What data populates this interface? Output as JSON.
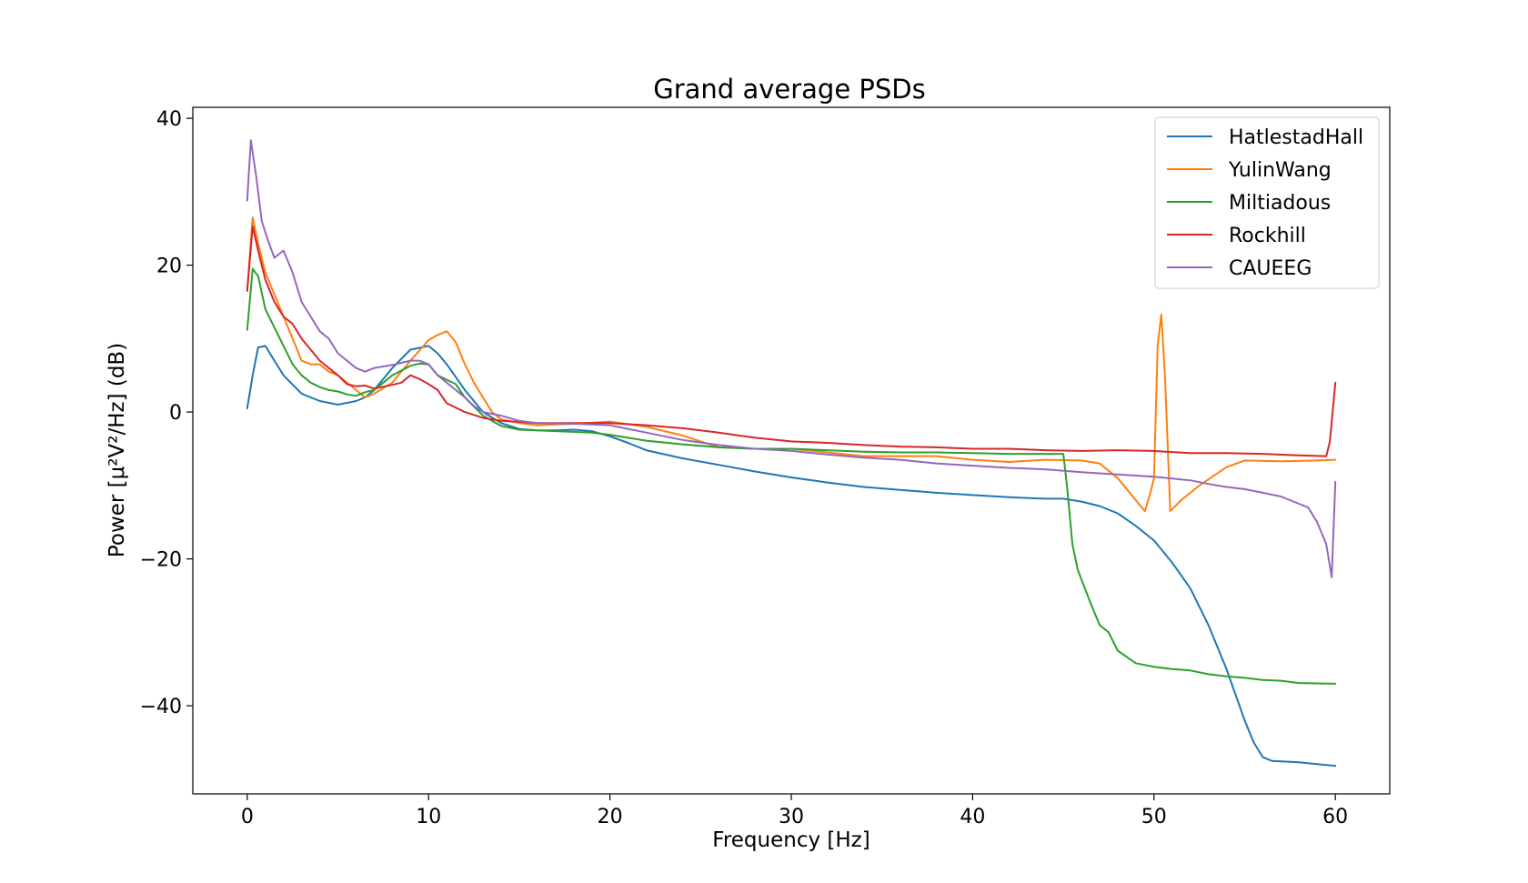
{
  "chart_data": {
    "type": "line",
    "title": "Grand average PSDs",
    "xlabel": "Frequency [Hz]",
    "ylabel": "Power [μ²V²/Hz] (dB)",
    "xlim": [
      -3,
      63
    ],
    "ylim": [
      -52,
      41.5
    ],
    "xticks": [
      0,
      10,
      20,
      30,
      40,
      50,
      60
    ],
    "xtick_labels": [
      "0",
      "10",
      "20",
      "30",
      "40",
      "50",
      "60"
    ],
    "yticks": [
      40,
      20,
      0,
      -20,
      -40
    ],
    "ytick_labels": [
      "40",
      "20",
      "0",
      "−20",
      "−40"
    ],
    "grid": false,
    "legend_position": "top-right",
    "series": [
      {
        "name": "HatlestadHall",
        "color": "#1f77b4",
        "points": [
          [
            0,
            0.5
          ],
          [
            0.3,
            5
          ],
          [
            0.6,
            8.8
          ],
          [
            1,
            9
          ],
          [
            1.5,
            7
          ],
          [
            2,
            5
          ],
          [
            3,
            2.5
          ],
          [
            4,
            1.5
          ],
          [
            5,
            1
          ],
          [
            6,
            1.5
          ],
          [
            6.5,
            2
          ],
          [
            7,
            3
          ],
          [
            8,
            6
          ],
          [
            9,
            8.5
          ],
          [
            10,
            9
          ],
          [
            10.5,
            8
          ],
          [
            11,
            6.5
          ],
          [
            12,
            3
          ],
          [
            13,
            0
          ],
          [
            14,
            -1.5
          ],
          [
            15,
            -2.3
          ],
          [
            16,
            -2.5
          ],
          [
            17,
            -2.5
          ],
          [
            18,
            -2.4
          ],
          [
            19,
            -2.6
          ],
          [
            20,
            -3.3
          ],
          [
            21,
            -4.2
          ],
          [
            22,
            -5.2
          ],
          [
            24,
            -6.3
          ],
          [
            26,
            -7.2
          ],
          [
            28,
            -8.1
          ],
          [
            30,
            -8.9
          ],
          [
            32,
            -9.6
          ],
          [
            34,
            -10.2
          ],
          [
            36,
            -10.6
          ],
          [
            38,
            -11
          ],
          [
            40,
            -11.3
          ],
          [
            42,
            -11.6
          ],
          [
            44,
            -11.8
          ],
          [
            45,
            -11.8
          ],
          [
            46,
            -12.2
          ],
          [
            47,
            -12.8
          ],
          [
            48,
            -13.8
          ],
          [
            49,
            -15.5
          ],
          [
            50,
            -17.5
          ],
          [
            51,
            -20.5
          ],
          [
            52,
            -24
          ],
          [
            53,
            -29
          ],
          [
            54,
            -35
          ],
          [
            55,
            -42
          ],
          [
            55.5,
            -45
          ],
          [
            56,
            -47
          ],
          [
            56.5,
            -47.5
          ],
          [
            58,
            -47.7
          ],
          [
            60,
            -48.2
          ]
        ]
      },
      {
        "name": "YulinWang",
        "color": "#ff7f0e",
        "points": [
          [
            0,
            16.5
          ],
          [
            0.3,
            26.5
          ],
          [
            0.6,
            23
          ],
          [
            1,
            19
          ],
          [
            1.5,
            16
          ],
          [
            2,
            13
          ],
          [
            2.5,
            10
          ],
          [
            3,
            7
          ],
          [
            3.5,
            6.5
          ],
          [
            4,
            6.5
          ],
          [
            4.5,
            5.5
          ],
          [
            5,
            5
          ],
          [
            6,
            3
          ],
          [
            6.5,
            2
          ],
          [
            7,
            2.5
          ],
          [
            8,
            4
          ],
          [
            9,
            7
          ],
          [
            10,
            9.8
          ],
          [
            10.5,
            10.5
          ],
          [
            11,
            11
          ],
          [
            11.5,
            9.5
          ],
          [
            12,
            6.5
          ],
          [
            12.5,
            4
          ],
          [
            13,
            2
          ],
          [
            13.5,
            0
          ],
          [
            14,
            -1
          ],
          [
            15,
            -1.5
          ],
          [
            16,
            -1.8
          ],
          [
            18,
            -1.6
          ],
          [
            20,
            -1.3
          ],
          [
            22,
            -2
          ],
          [
            24,
            -3.2
          ],
          [
            26,
            -4.8
          ],
          [
            28,
            -5
          ],
          [
            30,
            -5
          ],
          [
            32,
            -5.5
          ],
          [
            34,
            -6
          ],
          [
            36,
            -6
          ],
          [
            38,
            -6
          ],
          [
            40,
            -6.5
          ],
          [
            42,
            -6.8
          ],
          [
            44,
            -6.5
          ],
          [
            46,
            -6.6
          ],
          [
            47,
            -7
          ],
          [
            48,
            -9
          ],
          [
            49,
            -12
          ],
          [
            49.5,
            -13.5
          ],
          [
            49.8,
            -11
          ],
          [
            50,
            -9
          ],
          [
            50.2,
            9
          ],
          [
            50.4,
            13.3
          ],
          [
            50.6,
            5
          ],
          [
            50.9,
            -13.5
          ],
          [
            51.5,
            -12
          ],
          [
            52.5,
            -10
          ],
          [
            54,
            -7.5
          ],
          [
            55,
            -6.6
          ],
          [
            57,
            -6.7
          ],
          [
            59,
            -6.6
          ],
          [
            60,
            -6.5
          ]
        ]
      },
      {
        "name": "Miltiadous",
        "color": "#2ca02c",
        "points": [
          [
            0,
            11.2
          ],
          [
            0.3,
            19.5
          ],
          [
            0.6,
            18.5
          ],
          [
            1,
            14
          ],
          [
            1.5,
            11.5
          ],
          [
            2,
            9
          ],
          [
            2.5,
            6.5
          ],
          [
            3,
            5
          ],
          [
            3.5,
            4
          ],
          [
            4,
            3.4
          ],
          [
            4.5,
            3
          ],
          [
            5,
            2.8
          ],
          [
            5.5,
            2.4
          ],
          [
            6,
            2.2
          ],
          [
            6.5,
            2.7
          ],
          [
            7,
            3
          ],
          [
            7.5,
            4
          ],
          [
            8,
            5
          ],
          [
            9,
            6.3
          ],
          [
            9.5,
            6.6
          ],
          [
            10,
            6.5
          ],
          [
            10.5,
            5
          ],
          [
            11,
            4.4
          ],
          [
            11.5,
            3.8
          ],
          [
            12,
            2
          ],
          [
            13,
            -0.5
          ],
          [
            14,
            -1.9
          ],
          [
            15,
            -2.4
          ],
          [
            17,
            -2.6
          ],
          [
            19,
            -2.8
          ],
          [
            20,
            -3.1
          ],
          [
            22,
            -3.9
          ],
          [
            24,
            -4.4
          ],
          [
            26,
            -4.8
          ],
          [
            28,
            -5
          ],
          [
            30,
            -5
          ],
          [
            32,
            -5.2
          ],
          [
            34,
            -5.4
          ],
          [
            36,
            -5.5
          ],
          [
            38,
            -5.5
          ],
          [
            40,
            -5.6
          ],
          [
            42,
            -5.7
          ],
          [
            44,
            -5.7
          ],
          [
            45,
            -5.7
          ],
          [
            45.2,
            -10
          ],
          [
            45.5,
            -18
          ],
          [
            45.8,
            -21.5
          ],
          [
            46.5,
            -26
          ],
          [
            47,
            -29
          ],
          [
            47.5,
            -30
          ],
          [
            48,
            -32.5
          ],
          [
            49,
            -34.2
          ],
          [
            50,
            -34.7
          ],
          [
            51,
            -35
          ],
          [
            52,
            -35.2
          ],
          [
            53,
            -35.7
          ],
          [
            54,
            -36
          ],
          [
            55,
            -36.2
          ],
          [
            56,
            -36.5
          ],
          [
            57,
            -36.6
          ],
          [
            58,
            -36.9
          ],
          [
            60,
            -37
          ]
        ]
      },
      {
        "name": "Rockhill",
        "color": "#d62728",
        "points": [
          [
            0,
            16.5
          ],
          [
            0.3,
            25.3
          ],
          [
            0.6,
            22
          ],
          [
            1,
            18
          ],
          [
            1.5,
            15
          ],
          [
            2,
            13
          ],
          [
            2.5,
            12
          ],
          [
            3,
            10
          ],
          [
            3.5,
            8.5
          ],
          [
            4,
            7
          ],
          [
            5,
            5
          ],
          [
            5.5,
            3.8
          ],
          [
            6,
            3.5
          ],
          [
            6.5,
            3.6
          ],
          [
            7,
            3.2
          ],
          [
            8,
            3.7
          ],
          [
            8.5,
            4
          ],
          [
            9,
            5
          ],
          [
            9.5,
            4.5
          ],
          [
            10,
            3.8
          ],
          [
            10.5,
            3
          ],
          [
            11,
            1.2
          ],
          [
            12,
            0
          ],
          [
            13,
            -0.8
          ],
          [
            14,
            -1.2
          ],
          [
            16,
            -1.5
          ],
          [
            18,
            -1.5
          ],
          [
            20,
            -1.5
          ],
          [
            22,
            -1.8
          ],
          [
            24,
            -2.2
          ],
          [
            26,
            -2.8
          ],
          [
            28,
            -3.5
          ],
          [
            30,
            -4
          ],
          [
            32,
            -4.2
          ],
          [
            34,
            -4.5
          ],
          [
            36,
            -4.7
          ],
          [
            38,
            -4.8
          ],
          [
            40,
            -5
          ],
          [
            42,
            -5
          ],
          [
            44,
            -5.2
          ],
          [
            46,
            -5.3
          ],
          [
            48,
            -5.2
          ],
          [
            50,
            -5.3
          ],
          [
            52,
            -5.6
          ],
          [
            54,
            -5.6
          ],
          [
            56,
            -5.7
          ],
          [
            58,
            -5.9
          ],
          [
            59.5,
            -6
          ],
          [
            59.7,
            -4
          ],
          [
            60,
            4
          ]
        ]
      },
      {
        "name": "CAUEEG",
        "color": "#9467bd",
        "points": [
          [
            0,
            28.8
          ],
          [
            0.2,
            37
          ],
          [
            0.5,
            32
          ],
          [
            0.8,
            26
          ],
          [
            1.2,
            23
          ],
          [
            1.5,
            21
          ],
          [
            2,
            22
          ],
          [
            2.5,
            19
          ],
          [
            3,
            15
          ],
          [
            3.5,
            13
          ],
          [
            4,
            11
          ],
          [
            4.5,
            10
          ],
          [
            5,
            8
          ],
          [
            6,
            6
          ],
          [
            6.5,
            5.5
          ],
          [
            7,
            6
          ],
          [
            8,
            6.4
          ],
          [
            9,
            7
          ],
          [
            9.5,
            7
          ],
          [
            10,
            6.5
          ],
          [
            10.5,
            5
          ],
          [
            11,
            4
          ],
          [
            12,
            2
          ],
          [
            12.5,
            0.8
          ],
          [
            13,
            0
          ],
          [
            14,
            -0.5
          ],
          [
            15,
            -1.2
          ],
          [
            16,
            -1.5
          ],
          [
            18,
            -1.6
          ],
          [
            20,
            -1.8
          ],
          [
            22,
            -2.8
          ],
          [
            24,
            -3.8
          ],
          [
            26,
            -4.5
          ],
          [
            28,
            -5
          ],
          [
            30,
            -5.3
          ],
          [
            32,
            -5.8
          ],
          [
            34,
            -6.2
          ],
          [
            36,
            -6.5
          ],
          [
            38,
            -7
          ],
          [
            40,
            -7.3
          ],
          [
            42,
            -7.6
          ],
          [
            44,
            -7.8
          ],
          [
            46,
            -8.2
          ],
          [
            48,
            -8.5
          ],
          [
            50,
            -8.8
          ],
          [
            52,
            -9.3
          ],
          [
            53,
            -9.8
          ],
          [
            54,
            -10.2
          ],
          [
            55,
            -10.5
          ],
          [
            56,
            -11
          ],
          [
            57,
            -11.5
          ],
          [
            58,
            -12.5
          ],
          [
            58.5,
            -13
          ],
          [
            59,
            -15
          ],
          [
            59.5,
            -18
          ],
          [
            59.8,
            -22.5
          ],
          [
            60,
            -9.5
          ]
        ]
      }
    ]
  }
}
